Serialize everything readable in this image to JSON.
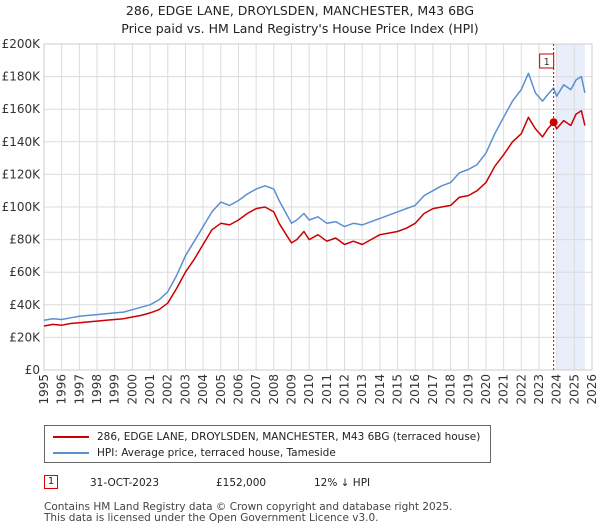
{
  "chart_data": {
    "type": "line",
    "title": "286, EDGE LANE, DROYLSDEN, MANCHESTER, M43 6BG",
    "subtitle": "Price paid vs. HM Land Registry's House Price Index (HPI)",
    "x_ticks": [
      "1995",
      "1996",
      "1997",
      "1998",
      "1999",
      "2000",
      "2001",
      "2002",
      "2003",
      "2004",
      "2005",
      "2006",
      "2007",
      "2008",
      "2009",
      "2010",
      "2011",
      "2012",
      "2013",
      "2014",
      "2015",
      "2016",
      "2017",
      "2018",
      "2019",
      "2020",
      "2021",
      "2022",
      "2023",
      "2024",
      "2025",
      "2026"
    ],
    "y_ticks": [
      "£0",
      "£20K",
      "£40K",
      "£60K",
      "£80K",
      "£100K",
      "£120K",
      "£140K",
      "£160K",
      "£180K",
      "£200K"
    ],
    "xlim": [
      1995,
      2026
    ],
    "ylim": [
      0,
      200000
    ],
    "grid": true,
    "series": [
      {
        "name": "286, EDGE LANE, DROYLSDEN, MANCHESTER, M43 6BG (terraced house)",
        "color": "#cc0000",
        "x": [
          1995,
          1995.5,
          1996,
          1996.5,
          1997,
          1997.5,
          1998,
          1998.5,
          1999,
          1999.5,
          2000,
          2000.5,
          2001,
          2001.5,
          2002,
          2002.5,
          2003,
          2003.5,
          2004,
          2004.5,
          2005,
          2005.5,
          2006,
          2006.5,
          2007,
          2007.5,
          2008,
          2008.3,
          2008.7,
          2009,
          2009.3,
          2009.7,
          2010,
          2010.5,
          2011,
          2011.5,
          2012,
          2012.5,
          2013,
          2013.5,
          2014,
          2014.5,
          2015,
          2015.5,
          2016,
          2016.5,
          2017,
          2017.5,
          2018,
          2018.5,
          2019,
          2019.5,
          2020,
          2020.5,
          2021,
          2021.5,
          2022,
          2022.4,
          2022.8,
          2023.2,
          2023.5,
          2023.83,
          2024,
          2024.4,
          2024.8,
          2025.1,
          2025.4,
          2025.6
        ],
        "y": [
          27000,
          28000,
          27500,
          28500,
          29000,
          29500,
          30000,
          30500,
          31000,
          31500,
          32500,
          33500,
          35000,
          37000,
          41000,
          50000,
          60000,
          68000,
          77000,
          86000,
          90000,
          89000,
          92000,
          96000,
          99000,
          100000,
          97000,
          90000,
          83000,
          78000,
          80000,
          85000,
          80000,
          83000,
          79000,
          81000,
          77000,
          79000,
          77000,
          80000,
          83000,
          84000,
          85000,
          87000,
          90000,
          96000,
          99000,
          100000,
          101000,
          106000,
          107000,
          110000,
          115000,
          125000,
          132000,
          140000,
          145000,
          155000,
          148000,
          143000,
          148000,
          152000,
          148000,
          153000,
          150000,
          157000,
          159000,
          150000
        ]
      },
      {
        "name": "HPI: Average price, terraced house, Tameside",
        "color": "#5b8fd0",
        "x": [
          1995,
          1995.5,
          1996,
          1996.5,
          1997,
          1997.5,
          1998,
          1998.5,
          1999,
          1999.5,
          2000,
          2000.5,
          2001,
          2001.5,
          2002,
          2002.5,
          2003,
          2003.5,
          2004,
          2004.5,
          2005,
          2005.5,
          2006,
          2006.5,
          2007,
          2007.5,
          2008,
          2008.3,
          2008.7,
          2009,
          2009.3,
          2009.7,
          2010,
          2010.5,
          2011,
          2011.5,
          2012,
          2012.5,
          2013,
          2013.5,
          2014,
          2014.5,
          2015,
          2015.5,
          2016,
          2016.5,
          2017,
          2017.5,
          2018,
          2018.5,
          2019,
          2019.5,
          2020,
          2020.5,
          2021,
          2021.5,
          2022,
          2022.4,
          2022.8,
          2023.2,
          2023.5,
          2023.83,
          2024,
          2024.4,
          2024.8,
          2025.1,
          2025.4,
          2025.6
        ],
        "y": [
          30500,
          31500,
          31000,
          32000,
          33000,
          33500,
          34000,
          34500,
          35000,
          35500,
          37000,
          38500,
          40000,
          43000,
          48000,
          58000,
          70000,
          79000,
          88000,
          97000,
          103000,
          101000,
          104000,
          108000,
          111000,
          113000,
          111000,
          104000,
          96000,
          90000,
          92000,
          96000,
          92000,
          94000,
          90000,
          91000,
          88000,
          90000,
          89000,
          91000,
          93000,
          95000,
          97000,
          99000,
          101000,
          107000,
          110000,
          113000,
          115000,
          121000,
          123000,
          126000,
          133000,
          145000,
          155000,
          165000,
          172000,
          182000,
          170000,
          165000,
          169000,
          173000,
          168000,
          175000,
          172000,
          178000,
          180000,
          170000
        ]
      }
    ],
    "annotations": [
      {
        "label": "1",
        "x": 2023.83,
        "y": 152000,
        "color": "#cc0000"
      }
    ],
    "shaded_region": {
      "from": 2024.0,
      "to": 2025.6,
      "color": "#e8eefa"
    }
  },
  "legend": {
    "red_label": "286, EDGE LANE, DROYLSDEN, MANCHESTER, M43 6BG (terraced house)",
    "blue_label": "HPI: Average price, terraced house, Tameside"
  },
  "sale": {
    "marker": "1",
    "date": "31-OCT-2023",
    "price": "£152,000",
    "hpi": "12% ↓ HPI"
  },
  "footer": {
    "line1": "Contains HM Land Registry data © Crown copyright and database right 2025.",
    "line2": "This data is licensed under the Open Government Licence v3.0."
  }
}
